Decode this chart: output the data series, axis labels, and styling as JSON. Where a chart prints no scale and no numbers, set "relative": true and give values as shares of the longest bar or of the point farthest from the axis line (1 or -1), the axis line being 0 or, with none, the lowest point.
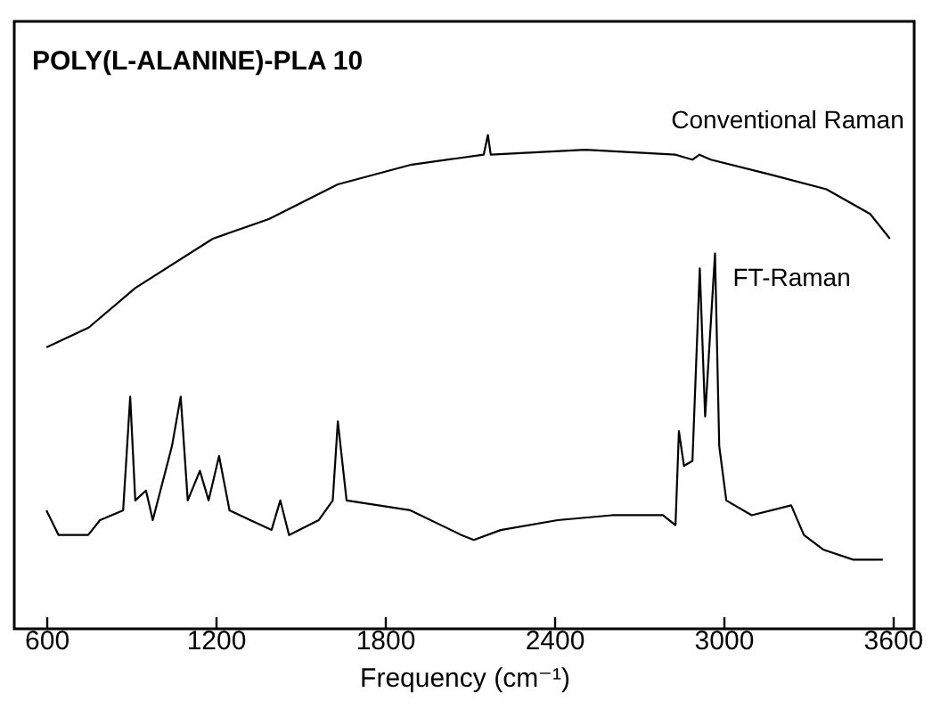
{
  "chart_data": {
    "type": "line",
    "title": "POLY(L-ALANINE)-PLA 10",
    "xlabel": "Frequency (cm⁻¹)",
    "relative": true,
    "xlim": [
      486,
      3676
    ],
    "xticks": [
      600,
      1200,
      1800,
      2400,
      3000,
      3600
    ],
    "grid": false,
    "legend": false,
    "series": [
      {
        "name": "Conventional Raman",
        "color": "#000000",
        "x": [
          600,
          750,
          915,
          1190,
          1390,
          1633,
          1895,
          2150,
          2165,
          2175,
          2510,
          2830,
          2890,
          2915,
          2955,
          3165,
          3365,
          3520,
          3590
        ],
        "values": [
          0.57,
          0.61,
          0.69,
          0.79,
          0.83,
          0.9,
          0.94,
          0.96,
          1.0,
          0.96,
          0.97,
          0.96,
          0.95,
          0.96,
          0.95,
          0.92,
          0.89,
          0.84,
          0.79
        ]
      },
      {
        "name": "FT-Raman",
        "color": "#000000",
        "x": [
          600,
          643,
          748,
          790,
          872,
          897,
          915,
          953,
          977,
          1045,
          1076,
          1101,
          1144,
          1175,
          1212,
          1249,
          1323,
          1398,
          1429,
          1460,
          1565,
          1615,
          1633,
          1664,
          1890,
          2071,
          2115,
          2210,
          2412,
          2605,
          2785,
          2830,
          2842,
          2860,
          2890,
          2916,
          2935,
          2970,
          2985,
          3010,
          3100,
          3240,
          3285,
          3355,
          3460,
          3565
        ],
        "values": [
          0.24,
          0.19,
          0.19,
          0.22,
          0.24,
          0.47,
          0.26,
          0.28,
          0.22,
          0.37,
          0.47,
          0.26,
          0.32,
          0.26,
          0.35,
          0.24,
          0.22,
          0.2,
          0.26,
          0.19,
          0.22,
          0.26,
          0.42,
          0.26,
          0.24,
          0.19,
          0.18,
          0.2,
          0.22,
          0.23,
          0.23,
          0.21,
          0.4,
          0.33,
          0.34,
          0.73,
          0.43,
          0.76,
          0.37,
          0.26,
          0.23,
          0.25,
          0.19,
          0.16,
          0.14,
          0.14
        ]
      }
    ]
  }
}
